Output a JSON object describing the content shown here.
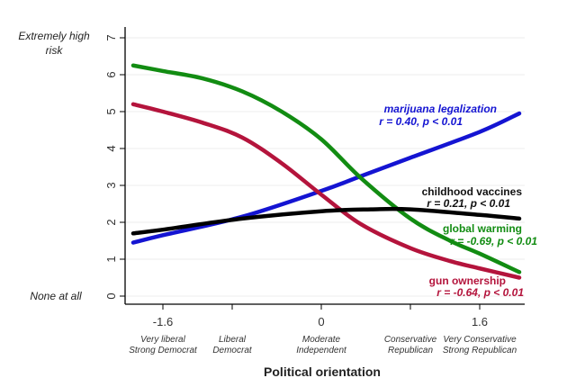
{
  "chart_data": {
    "type": "line",
    "title": "",
    "xlabel": "Political orientation",
    "ylabel": "",
    "xlim": [
      -2.0,
      2.05
    ],
    "ylim": [
      0,
      7
    ],
    "grid": true,
    "y_ticks": [
      "0",
      "1",
      "2",
      "3",
      "4",
      "5",
      "6",
      "7"
    ],
    "y_annotations": {
      "top": "Extremely high risk",
      "bottom": "None at all"
    },
    "x_ticks": [
      {
        "value": -1.6,
        "label": "-1.6",
        "category": [
          "Very liberal",
          "Strong Democrat"
        ]
      },
      {
        "value": -0.9,
        "label": "",
        "category": [
          "Liberal",
          "Democrat"
        ]
      },
      {
        "value": 0,
        "label": "0",
        "category": [
          "Moderate",
          "Independent"
        ]
      },
      {
        "value": 0.9,
        "label": "",
        "category": [
          "Conservative",
          "Republican"
        ]
      },
      {
        "value": 1.6,
        "label": "1.6",
        "category": [
          "Very Conservative",
          "Strong Republican"
        ]
      }
    ],
    "series": [
      {
        "name": "marijuana legalization",
        "stat": "r = 0.40, p < 0.01",
        "color": "#1414d2",
        "x": [
          -1.9,
          -1.6,
          -0.8,
          0,
          0.4,
          0.9,
          1.6,
          2.0
        ],
        "y": [
          1.45,
          1.65,
          2.15,
          2.85,
          3.25,
          3.75,
          4.45,
          4.95
        ]
      },
      {
        "name": "childhood vaccines",
        "stat": "r = 0.21, p < 0.01",
        "color": "#000000",
        "x": [
          -1.9,
          -1.6,
          -0.8,
          0,
          0.5,
          0.9,
          1.6,
          2.0
        ],
        "y": [
          1.7,
          1.8,
          2.1,
          2.3,
          2.35,
          2.35,
          2.2,
          2.1
        ]
      },
      {
        "name": "global warming",
        "stat": "r = -0.69, p < 0.01",
        "color": "#128c12",
        "x": [
          -1.9,
          -1.6,
          -1.2,
          -0.8,
          -0.4,
          0,
          0.4,
          0.9,
          1.3,
          1.6,
          2.0
        ],
        "y": [
          6.25,
          6.1,
          5.9,
          5.55,
          5.0,
          4.25,
          3.2,
          2.1,
          1.5,
          1.15,
          0.65
        ]
      },
      {
        "name": "gun ownership",
        "stat": "r = -0.64, p < 0.01",
        "color": "#b4143c",
        "x": [
          -1.9,
          -1.6,
          -1.2,
          -0.8,
          -0.4,
          0,
          0.4,
          0.9,
          1.3,
          1.6,
          2.0
        ],
        "y": [
          5.2,
          5.0,
          4.7,
          4.3,
          3.6,
          2.75,
          1.95,
          1.3,
          0.95,
          0.75,
          0.5
        ]
      }
    ]
  }
}
